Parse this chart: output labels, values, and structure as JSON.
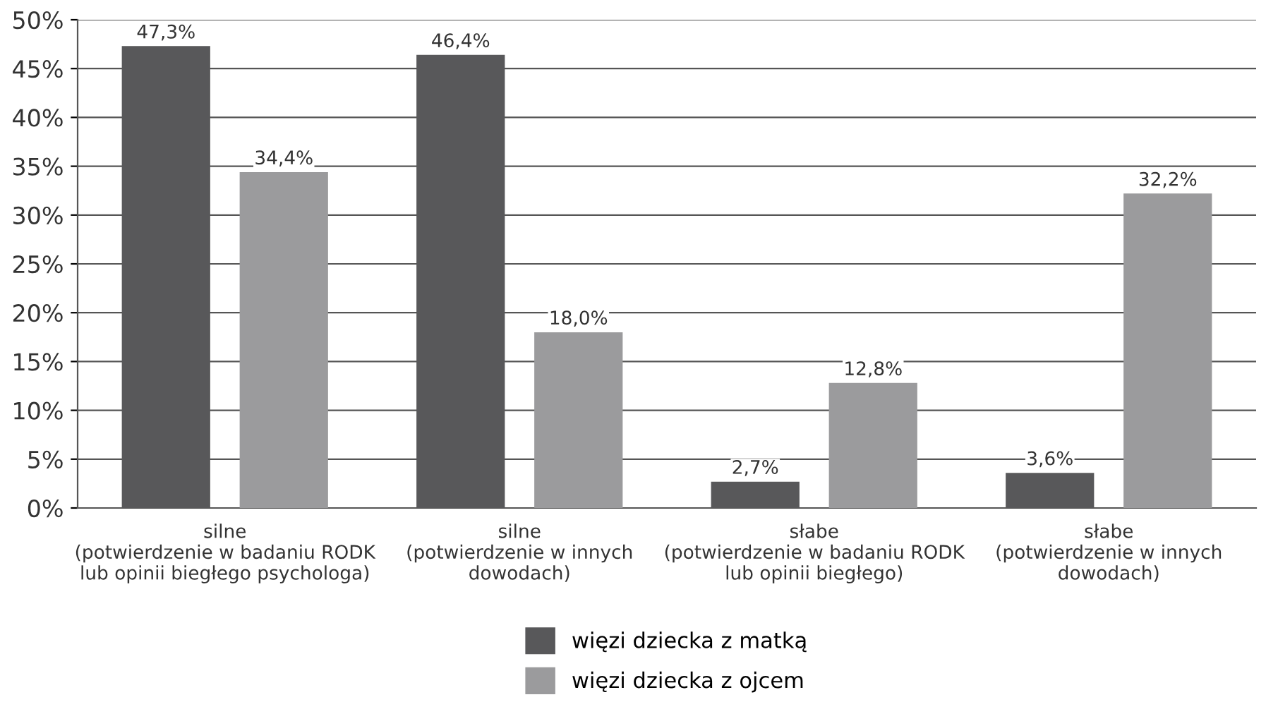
{
  "chart_data": {
    "type": "bar",
    "categories": [
      "silne\n(potwierdzenie w badaniu RODK\nlub opinii biegłego psychologa)",
      "silne\n(potwierdzenie w innych\ndowodach)",
      "słabe\n(potwierdzenie w badaniu RODK\nlub opinii biegłego)",
      "słabe\n(potwierdzenie w innych\ndowodach)"
    ],
    "series": [
      {
        "name": "więzi dziecka z matką",
        "color": "#58585a",
        "values": [
          47.3,
          46.4,
          2.7,
          3.6
        ],
        "value_labels": [
          "47,3%",
          "46,4%",
          "2,7%",
          "3,6%"
        ]
      },
      {
        "name": "więzi dziecka z ojcem",
        "color": "#9b9b9d",
        "values": [
          34.4,
          18.0,
          12.8,
          32.2
        ],
        "value_labels": [
          "34,4%",
          "18,0%",
          "12,8%",
          "32,2%"
        ]
      }
    ],
    "ylim": [
      0,
      50
    ],
    "yticks": [
      {
        "value": 0,
        "label": "0%"
      },
      {
        "value": 5,
        "label": "5%"
      },
      {
        "value": 10,
        "label": "10%"
      },
      {
        "value": 15,
        "label": "15%"
      },
      {
        "value": 20,
        "label": "20%"
      },
      {
        "value": 25,
        "label": "25%"
      },
      {
        "value": 30,
        "label": "30%"
      },
      {
        "value": 35,
        "label": "35%"
      },
      {
        "value": 40,
        "label": "40%"
      },
      {
        "value": 45,
        "label": "45%"
      },
      {
        "value": 50,
        "label": "50%"
      }
    ],
    "grid": "y",
    "legend": "bottom"
  }
}
